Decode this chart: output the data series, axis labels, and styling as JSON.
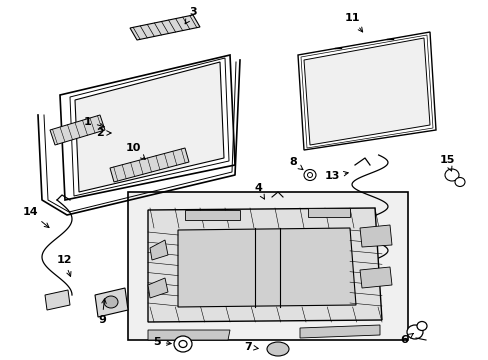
{
  "bg_color": "#ffffff",
  "line_color": "#000000",
  "gray_fill": "#d8d8d8",
  "light_gray": "#ebebeb",
  "mid_gray": "#c8c8c8",
  "dark_gray": "#a8a8a8"
}
